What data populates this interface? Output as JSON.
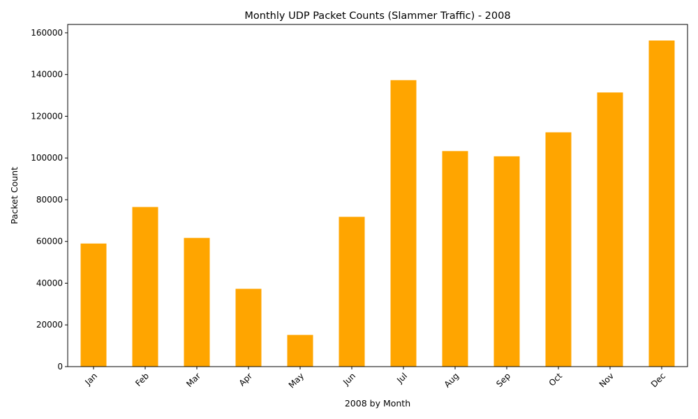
{
  "chart_data": {
    "type": "bar",
    "title": "Monthly UDP Packet Counts (Slammer Traffic) - 2008",
    "xlabel": "2008 by Month",
    "ylabel": "Packet Count",
    "categories": [
      "Jan",
      "Feb",
      "Mar",
      "Apr",
      "May",
      "Jun",
      "Jul",
      "Aug",
      "Sep",
      "Oct",
      "Nov",
      "Dec"
    ],
    "values": [
      59000,
      76500,
      61700,
      37300,
      15200,
      71800,
      137300,
      103300,
      100800,
      112300,
      131400,
      156300
    ],
    "ylim": [
      0,
      164000
    ],
    "yticks": [
      0,
      20000,
      40000,
      60000,
      80000,
      100000,
      120000,
      140000,
      160000
    ],
    "bar_color": "#ffa500",
    "grid": false,
    "legend": "none"
  }
}
